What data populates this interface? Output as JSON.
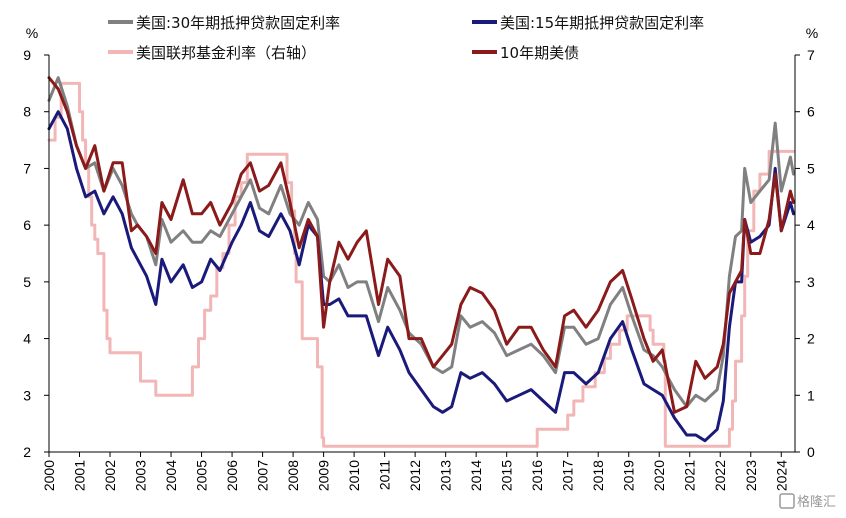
{
  "chart_data": {
    "type": "line",
    "left_unit": "%",
    "right_unit": "%",
    "left_axis": {
      "min": 2,
      "max": 9,
      "ticks": [
        2,
        3,
        4,
        5,
        6,
        7,
        8,
        9
      ]
    },
    "right_axis": {
      "min": 0,
      "max": 7,
      "ticks": [
        0,
        1,
        2,
        3,
        4,
        5,
        6,
        7
      ]
    },
    "x_ticks": [
      "2000",
      "2001",
      "2002",
      "2003",
      "2004",
      "2005",
      "2006",
      "2007",
      "2008",
      "2009",
      "2010",
      "2011",
      "2012",
      "2013",
      "2014",
      "2015",
      "2016",
      "2017",
      "2018",
      "2019",
      "2020",
      "2021",
      "2022",
      "2023",
      "2024"
    ],
    "legend_position": "top",
    "grid": false,
    "watermark": "格隆汇",
    "series": [
      {
        "name": "美国:30年期抵押贷款固定利率",
        "color": "#808080",
        "axis": "left",
        "x": [
          2000.0,
          2000.3,
          2000.6,
          2000.9,
          2001.2,
          2001.5,
          2001.8,
          2002.1,
          2002.4,
          2002.7,
          2002.9,
          2003.2,
          2003.5,
          2003.7,
          2004.0,
          2004.4,
          2004.7,
          2005.0,
          2005.3,
          2005.6,
          2006.0,
          2006.3,
          2006.6,
          2006.9,
          2007.2,
          2007.6,
          2007.9,
          2008.2,
          2008.5,
          2008.8,
          2009.0,
          2009.2,
          2009.5,
          2009.8,
          2010.1,
          2010.4,
          2010.8,
          2011.1,
          2011.5,
          2011.8,
          2012.2,
          2012.6,
          2012.9,
          2013.2,
          2013.5,
          2013.8,
          2014.2,
          2014.6,
          2015.0,
          2015.4,
          2015.8,
          2016.2,
          2016.6,
          2016.9,
          2017.2,
          2017.6,
          2018.0,
          2018.4,
          2018.8,
          2019.1,
          2019.5,
          2019.8,
          2020.1,
          2020.5,
          2020.9,
          2021.2,
          2021.5,
          2021.9,
          2022.1,
          2022.3,
          2022.5,
          2022.7,
          2022.8,
          2023.0,
          2023.3,
          2023.6,
          2023.8,
          2024.0,
          2024.3,
          2024.4
        ],
        "values": [
          8.2,
          8.6,
          8.1,
          7.4,
          7.0,
          7.1,
          6.6,
          7.0,
          6.7,
          6.2,
          6.0,
          5.8,
          5.3,
          6.1,
          5.7,
          5.9,
          5.7,
          5.7,
          5.9,
          5.8,
          6.2,
          6.5,
          6.8,
          6.3,
          6.2,
          6.7,
          6.2,
          6.0,
          6.4,
          6.1,
          5.1,
          5.0,
          5.3,
          4.9,
          5.0,
          5.0,
          4.3,
          4.9,
          4.5,
          4.1,
          3.9,
          3.5,
          3.4,
          3.5,
          4.4,
          4.2,
          4.3,
          4.1,
          3.7,
          3.8,
          3.9,
          3.7,
          3.4,
          4.2,
          4.2,
          3.9,
          4.0,
          4.6,
          4.9,
          4.4,
          3.8,
          3.7,
          3.5,
          3.1,
          2.8,
          3.0,
          2.9,
          3.1,
          3.7,
          5.1,
          5.8,
          5.9,
          7.0,
          6.4,
          6.6,
          6.8,
          7.8,
          6.6,
          7.2,
          6.9
        ]
      },
      {
        "name": "美国:15年期抵押贷款固定利率",
        "color": "#1a1a7a",
        "axis": "left",
        "x": [
          2000.0,
          2000.3,
          2000.6,
          2000.9,
          2001.2,
          2001.5,
          2001.8,
          2002.1,
          2002.4,
          2002.7,
          2002.9,
          2003.2,
          2003.5,
          2003.7,
          2004.0,
          2004.4,
          2004.7,
          2005.0,
          2005.3,
          2005.6,
          2006.0,
          2006.3,
          2006.6,
          2006.9,
          2007.2,
          2007.6,
          2007.9,
          2008.2,
          2008.5,
          2008.8,
          2009.0,
          2009.2,
          2009.5,
          2009.8,
          2010.1,
          2010.4,
          2010.8,
          2011.1,
          2011.5,
          2011.8,
          2012.2,
          2012.6,
          2012.9,
          2013.2,
          2013.5,
          2013.8,
          2014.2,
          2014.6,
          2015.0,
          2015.4,
          2015.8,
          2016.2,
          2016.6,
          2016.9,
          2017.2,
          2017.6,
          2018.0,
          2018.4,
          2018.8,
          2019.1,
          2019.5,
          2019.8,
          2020.1,
          2020.5,
          2020.9,
          2021.2,
          2021.5,
          2021.9,
          2022.1,
          2022.3,
          2022.5,
          2022.7,
          2022.8,
          2023.0,
          2023.3,
          2023.6,
          2023.8,
          2024.0,
          2024.3,
          2024.4
        ],
        "values": [
          7.7,
          8.0,
          7.7,
          7.0,
          6.5,
          6.6,
          6.2,
          6.5,
          6.2,
          5.6,
          5.4,
          5.1,
          4.6,
          5.4,
          5.0,
          5.3,
          4.9,
          5.0,
          5.4,
          5.2,
          5.7,
          6.0,
          6.4,
          5.9,
          5.8,
          6.2,
          5.9,
          5.3,
          6.0,
          5.8,
          4.6,
          4.6,
          4.7,
          4.4,
          4.4,
          4.4,
          3.7,
          4.2,
          3.8,
          3.4,
          3.1,
          2.8,
          2.7,
          2.8,
          3.4,
          3.3,
          3.4,
          3.2,
          2.9,
          3.0,
          3.1,
          2.9,
          2.7,
          3.4,
          3.4,
          3.2,
          3.4,
          4.0,
          4.3,
          3.8,
          3.2,
          3.1,
          3.0,
          2.6,
          2.3,
          2.3,
          2.2,
          2.4,
          2.9,
          4.2,
          5.0,
          5.0,
          6.1,
          5.7,
          5.8,
          6.0,
          7.0,
          5.9,
          6.4,
          6.2
        ]
      },
      {
        "name": "美国联邦基金利率（右轴）",
        "color": "#f2b6b6",
        "axis": "right",
        "x": [
          2000.0,
          2000.2,
          2000.4,
          2000.9,
          2001.0,
          2001.1,
          2001.2,
          2001.3,
          2001.4,
          2001.5,
          2001.6,
          2001.8,
          2001.9,
          2002.0,
          2002.9,
          2003.0,
          2003.5,
          2004.0,
          2004.5,
          2004.7,
          2004.9,
          2005.1,
          2005.3,
          2005.5,
          2005.7,
          2005.9,
          2006.1,
          2006.3,
          2006.5,
          2007.7,
          2007.8,
          2007.95,
          2008.05,
          2008.1,
          2008.3,
          2008.8,
          2008.95,
          2009.0,
          2015.9,
          2016.0,
          2016.9,
          2017.0,
          2017.2,
          2017.5,
          2017.9,
          2018.2,
          2018.4,
          2018.7,
          2018.95,
          2019.5,
          2019.7,
          2019.8,
          2020.15,
          2020.2,
          2022.2,
          2022.3,
          2022.4,
          2022.5,
          2022.7,
          2022.8,
          2022.9,
          2023.1,
          2023.3,
          2023.6,
          2024.4
        ],
        "values": [
          5.5,
          5.9,
          6.5,
          6.5,
          6.0,
          5.5,
          5.0,
          4.5,
          4.0,
          3.75,
          3.5,
          2.5,
          2.0,
          1.75,
          1.75,
          1.25,
          1.0,
          1.0,
          1.0,
          1.5,
          2.0,
          2.5,
          2.75,
          3.25,
          3.5,
          4.0,
          4.5,
          4.75,
          5.25,
          5.25,
          4.75,
          4.25,
          3.5,
          3.0,
          2.0,
          1.5,
          0.25,
          0.1,
          0.1,
          0.4,
          0.4,
          0.65,
          0.9,
          1.15,
          1.4,
          1.65,
          1.9,
          2.15,
          2.4,
          2.4,
          2.15,
          1.9,
          1.6,
          0.1,
          0.1,
          0.4,
          0.9,
          1.6,
          2.4,
          3.1,
          3.9,
          4.6,
          4.9,
          5.3,
          5.3
        ]
      },
      {
        "name": "10年期美债",
        "color": "#8b1a1a",
        "axis": "right",
        "x": [
          2000.0,
          2000.3,
          2000.6,
          2000.9,
          2001.2,
          2001.5,
          2001.8,
          2002.1,
          2002.4,
          2002.7,
          2002.9,
          2003.2,
          2003.5,
          2003.7,
          2004.0,
          2004.4,
          2004.7,
          2005.0,
          2005.3,
          2005.6,
          2006.0,
          2006.3,
          2006.6,
          2006.9,
          2007.2,
          2007.6,
          2007.9,
          2008.2,
          2008.5,
          2008.8,
          2009.0,
          2009.2,
          2009.5,
          2009.8,
          2010.1,
          2010.4,
          2010.8,
          2011.1,
          2011.5,
          2011.8,
          2012.2,
          2012.6,
          2012.9,
          2013.2,
          2013.5,
          2013.8,
          2014.2,
          2014.6,
          2015.0,
          2015.4,
          2015.8,
          2016.2,
          2016.6,
          2016.9,
          2017.2,
          2017.6,
          2018.0,
          2018.4,
          2018.8,
          2019.1,
          2019.5,
          2019.8,
          2020.1,
          2020.5,
          2020.9,
          2021.2,
          2021.5,
          2021.9,
          2022.1,
          2022.3,
          2022.5,
          2022.7,
          2022.8,
          2023.0,
          2023.3,
          2023.6,
          2023.8,
          2024.0,
          2024.3,
          2024.4
        ],
        "values": [
          6.6,
          6.4,
          6.0,
          5.4,
          5.0,
          5.4,
          4.6,
          5.1,
          5.1,
          3.9,
          4.0,
          3.8,
          3.5,
          4.4,
          4.1,
          4.8,
          4.2,
          4.2,
          4.4,
          4.0,
          4.4,
          4.9,
          5.1,
          4.6,
          4.7,
          5.1,
          4.4,
          3.6,
          4.1,
          3.8,
          2.2,
          3.0,
          3.7,
          3.4,
          3.7,
          3.9,
          2.6,
          3.4,
          3.1,
          2.0,
          2.0,
          1.5,
          1.7,
          1.9,
          2.6,
          2.9,
          2.8,
          2.5,
          1.9,
          2.2,
          2.2,
          1.8,
          1.5,
          2.4,
          2.5,
          2.2,
          2.5,
          3.0,
          3.2,
          2.7,
          2.0,
          1.6,
          1.8,
          0.7,
          0.8,
          1.6,
          1.3,
          1.5,
          1.9,
          2.8,
          3.0,
          3.2,
          4.1,
          3.5,
          3.5,
          4.1,
          4.9,
          3.9,
          4.6,
          4.4
        ]
      }
    ]
  }
}
